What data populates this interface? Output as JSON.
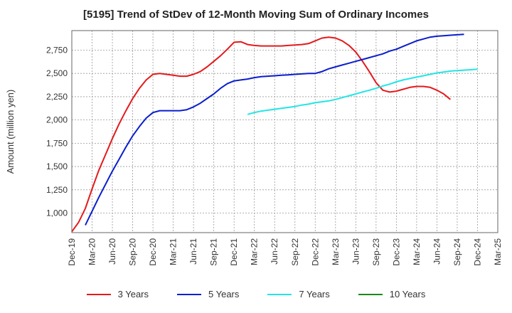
{
  "chart_data": {
    "type": "line",
    "title": "[5195]  Trend of StDev of 12-Month Moving Sum of Ordinary Incomes",
    "xlabel": "",
    "ylabel": "Amount (million yen)",
    "x_tick_labels": [
      "Dec-19",
      "Mar-20",
      "Jun-20",
      "Sep-20",
      "Dec-20",
      "Mar-21",
      "Jun-21",
      "Sep-21",
      "Dec-21",
      "Mar-22",
      "Jun-22",
      "Sep-22",
      "Dec-22",
      "Mar-23",
      "Jun-23",
      "Sep-23",
      "Dec-23",
      "Mar-24",
      "Jun-24",
      "Sep-24",
      "Dec-24",
      "Mar-25"
    ],
    "y_tick_labels": [
      "1,000",
      "1,250",
      "1,500",
      "1,750",
      "2,000",
      "2,250",
      "2,500",
      "2,750"
    ],
    "y_ticks": [
      1000,
      1250,
      1500,
      1750,
      2000,
      2250,
      2500,
      2750
    ],
    "ylim": [
      790,
      2960
    ],
    "grid": true,
    "legend_position": "bottom",
    "series": [
      {
        "name": "3 Years",
        "color": "#e31a1c",
        "start_index": 0,
        "values": [
          800,
          900,
          1050,
          1260,
          1460,
          1630,
          1800,
          1960,
          2100,
          2230,
          2340,
          2430,
          2490,
          2500,
          2490,
          2480,
          2470,
          2470,
          2490,
          2520,
          2570,
          2630,
          2690,
          2760,
          2835,
          2840,
          2810,
          2800,
          2795,
          2795,
          2795,
          2795,
          2800,
          2805,
          2810,
          2820,
          2850,
          2880,
          2890,
          2880,
          2850,
          2800,
          2730,
          2630,
          2520,
          2400,
          2320,
          2300,
          2310,
          2330,
          2350,
          2360,
          2360,
          2350,
          2320,
          2280,
          2220
        ]
      },
      {
        "name": "5 Years",
        "color": "#0a1ecc",
        "start_index": 2,
        "values": [
          870,
          1020,
          1170,
          1310,
          1450,
          1580,
          1710,
          1830,
          1930,
          2020,
          2080,
          2100,
          2100,
          2100,
          2100,
          2110,
          2140,
          2180,
          2230,
          2280,
          2340,
          2390,
          2420,
          2430,
          2440,
          2455,
          2465,
          2470,
          2475,
          2480,
          2485,
          2490,
          2495,
          2500,
          2500,
          2520,
          2550,
          2570,
          2590,
          2610,
          2630,
          2650,
          2670,
          2690,
          2710,
          2740,
          2760,
          2790,
          2820,
          2850,
          2870,
          2890,
          2900,
          2905,
          2910,
          2915,
          2920
        ]
      },
      {
        "name": "7 Years",
        "color": "#22e5e5",
        "start_index": 26,
        "values": [
          2060,
          2080,
          2095,
          2105,
          2115,
          2125,
          2135,
          2145,
          2160,
          2170,
          2185,
          2195,
          2205,
          2220,
          2240,
          2260,
          2280,
          2300,
          2320,
          2340,
          2365,
          2385,
          2410,
          2430,
          2445,
          2460,
          2475,
          2490,
          2505,
          2515,
          2525,
          2530,
          2535,
          2540,
          2545
        ]
      },
      {
        "name": "10 Years",
        "color": "#1a8a1a",
        "start_index": 0,
        "values": []
      }
    ]
  }
}
